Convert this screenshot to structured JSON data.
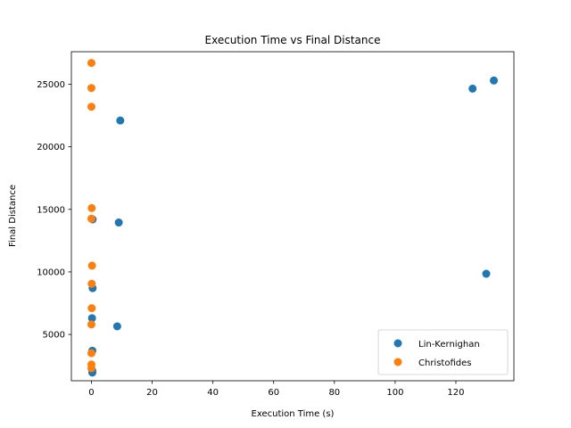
{
  "chart_data": {
    "type": "scatter",
    "title": "Execution Time vs Final Distance",
    "xlabel": "Execution Time (s)",
    "ylabel": "Final Distance",
    "xlim": [
      -6.6,
      139.1
    ],
    "ylim": [
      1300,
      27600
    ],
    "xticks": [
      0,
      20,
      40,
      60,
      80,
      100,
      120
    ],
    "yticks": [
      5000,
      10000,
      15000,
      20000,
      25000
    ],
    "grid": false,
    "legend_position": "lower-right",
    "series": [
      {
        "name": "Lin-Kernighan",
        "color": "#1f77b4",
        "points": [
          {
            "x": 0.3,
            "y": 1950
          },
          {
            "x": 0.3,
            "y": 2100
          },
          {
            "x": 0.3,
            "y": 3700
          },
          {
            "x": 0.2,
            "y": 6300
          },
          {
            "x": 0.4,
            "y": 8700
          },
          {
            "x": 0.4,
            "y": 14200
          },
          {
            "x": 8.5,
            "y": 5650
          },
          {
            "x": 9.0,
            "y": 13950
          },
          {
            "x": 9.5,
            "y": 22100
          },
          {
            "x": 125.5,
            "y": 24650
          },
          {
            "x": 130.0,
            "y": 9850
          },
          {
            "x": 132.5,
            "y": 25300
          }
        ]
      },
      {
        "name": "Christofides",
        "color": "#ff7f0e",
        "points": [
          {
            "x": 0.0,
            "y": 2300
          },
          {
            "x": 0.0,
            "y": 2600
          },
          {
            "x": 0.0,
            "y": 3500
          },
          {
            "x": 0.0,
            "y": 5800
          },
          {
            "x": 0.1,
            "y": 7100
          },
          {
            "x": 0.1,
            "y": 9050
          },
          {
            "x": 0.2,
            "y": 10500
          },
          {
            "x": 0.0,
            "y": 14250
          },
          {
            "x": 0.1,
            "y": 15100
          },
          {
            "x": 0.0,
            "y": 23200
          },
          {
            "x": 0.0,
            "y": 24700
          },
          {
            "x": 0.0,
            "y": 26700
          }
        ]
      }
    ]
  }
}
